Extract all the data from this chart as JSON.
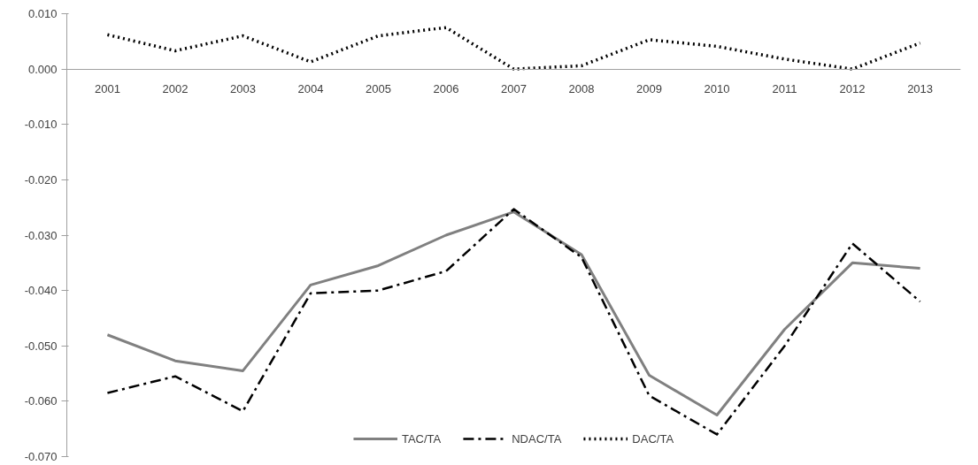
{
  "chart_data": {
    "type": "line",
    "categories": [
      "2001",
      "2002",
      "2003",
      "2004",
      "2005",
      "2006",
      "2007",
      "2008",
      "2009",
      "2010",
      "2011",
      "2012",
      "2013"
    ],
    "ylim": [
      -0.07,
      0.01
    ],
    "yticks": [
      {
        "value": 0.01,
        "label": "0.010"
      },
      {
        "value": 0,
        "label": "0.000"
      },
      {
        "value": -0.01,
        "label": "-0.010"
      },
      {
        "value": -0.02,
        "label": "-0.020"
      },
      {
        "value": -0.03,
        "label": "-0.030"
      },
      {
        "value": -0.04,
        "label": "-0.040"
      },
      {
        "value": -0.05,
        "label": "-0.050"
      },
      {
        "value": -0.06,
        "label": "-0.060"
      },
      {
        "value": -0.07,
        "label": "-0.070"
      }
    ],
    "grid": false,
    "legend": "bottom",
    "marker": "none",
    "series": [
      {
        "name": "TAC/TA",
        "color": "#808080",
        "line_style": "solid",
        "values": [
          -0.048,
          -0.0527,
          -0.0545,
          -0.039,
          -0.0355,
          -0.03,
          -0.0258,
          -0.0335,
          -0.0553,
          -0.0625,
          -0.047,
          -0.035,
          -0.036
        ]
      },
      {
        "name": "NDAC/TA",
        "color": "#000000",
        "line_style": "dashdot",
        "values": [
          -0.0585,
          -0.0555,
          -0.0618,
          -0.0405,
          -0.04,
          -0.0365,
          -0.0253,
          -0.034,
          -0.059,
          -0.066,
          -0.05,
          -0.0315,
          -0.042
        ]
      },
      {
        "name": "DAC/TA",
        "color": "#000000",
        "line_style": "dotted",
        "values": [
          0.0062,
          0.0033,
          0.006,
          0.0013,
          0.006,
          0.0075,
          0.0,
          0.0006,
          0.0053,
          0.0041,
          0.0018,
          0.0,
          0.0047
        ]
      }
    ]
  }
}
